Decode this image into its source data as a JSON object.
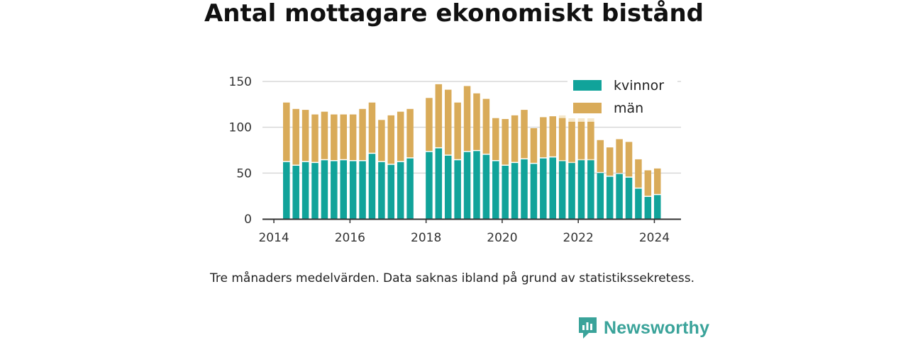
{
  "title": "Antal mottagare ekonomiskt bistånd",
  "caption": "Tre månaders medelvärden. Data saknas ibland på grund av statistikssekretess.",
  "brand": {
    "name": "Newsworthy",
    "icon": "newsworthy-logo-icon"
  },
  "colors": {
    "kvinnor": "#11a39a",
    "man": "#d9ab59",
    "man_faded": "#f5e8cc",
    "grid": "#d8d8d8",
    "axis": "#333333"
  },
  "chart_data": {
    "type": "bar",
    "stacked": true,
    "xlim": [
      2013.7,
      2024.7
    ],
    "ylim": [
      0,
      150
    ],
    "yticks": [
      0,
      50,
      100,
      150
    ],
    "xticks": [
      2014,
      2016,
      2018,
      2020,
      2022,
      2024
    ],
    "grid": true,
    "legend_position": "top-right",
    "x": [
      2014.33,
      2014.58,
      2014.83,
      2015.08,
      2015.33,
      2015.58,
      2015.83,
      2016.08,
      2016.33,
      2016.58,
      2016.83,
      2017.08,
      2017.33,
      2017.58,
      2018.08,
      2018.33,
      2018.58,
      2018.83,
      2019.08,
      2019.33,
      2019.58,
      2019.83,
      2020.08,
      2020.33,
      2020.58,
      2020.83,
      2021.08,
      2021.33,
      2021.58,
      2021.83,
      2022.08,
      2022.33,
      2022.58,
      2022.83,
      2023.08,
      2023.33,
      2023.58,
      2023.83,
      2024.08
    ],
    "series": [
      {
        "name": "kvinnor",
        "values": [
          62,
          58,
          62,
          61,
          64,
          63,
          64,
          63,
          63,
          71,
          62,
          59,
          62,
          66,
          73,
          77,
          69,
          64,
          73,
          74,
          70,
          63,
          58,
          61,
          65,
          60,
          66,
          67,
          63,
          61,
          64,
          64,
          50,
          46,
          49,
          45,
          33,
          24,
          26
        ]
      },
      {
        "name": "män",
        "values": [
          65,
          62,
          57,
          53,
          53,
          51,
          50,
          51,
          57,
          56,
          46,
          54,
          55,
          54,
          59,
          70,
          72,
          63,
          72,
          63,
          61,
          47,
          51,
          52,
          54,
          39,
          45,
          45,
          47,
          45,
          42,
          42,
          36,
          32,
          38,
          39,
          32,
          29,
          29
        ]
      }
    ],
    "faded_bars": [
      {
        "x": 2021.58,
        "value": 113
      },
      {
        "x": 2021.83,
        "value": 115
      },
      {
        "x": 2022.08,
        "value": 115
      },
      {
        "x": 2022.33,
        "value": 113
      }
    ]
  }
}
